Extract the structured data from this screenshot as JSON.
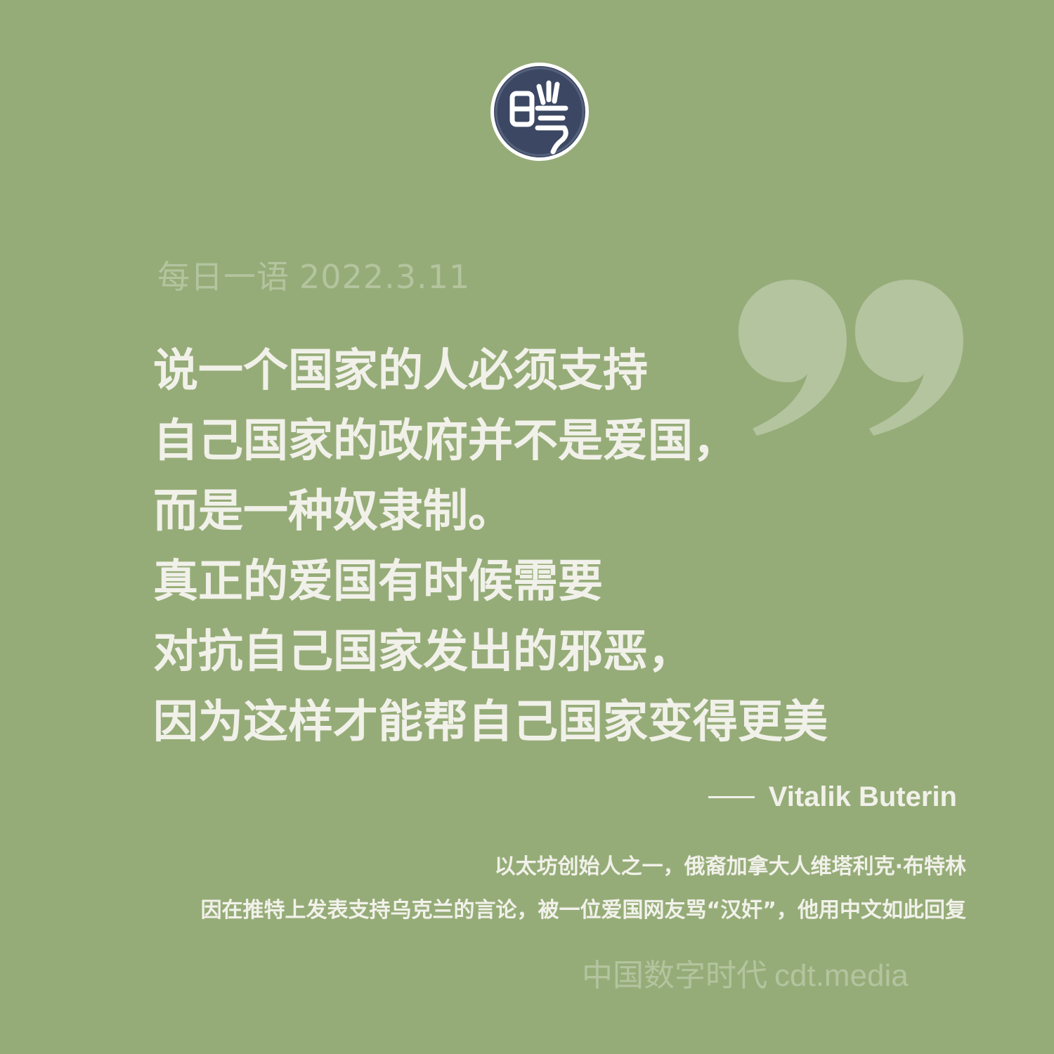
{
  "logo": {
    "char": "噤"
  },
  "header": {
    "label": "每日一语",
    "date": "2022.3.11"
  },
  "quote": {
    "lines": [
      "说一个国家的人必须支持",
      "自己国家的政府并不是爱国，",
      "而是一种奴隶制。",
      "真正的爱国有时候需要",
      "对抗自己国家发出的邪恶，",
      "因为这样才能帮自己国家变得更美"
    ]
  },
  "attribution": {
    "author": "Vitalik Buterin"
  },
  "caption": {
    "line1": "以太坊创始人之一，俄裔加拿大人维塔利克·布特林",
    "line2": "因在推特上发表支持乌克兰的言论，被一位爱国网友骂“汉奸”，他用中文如此回复"
  },
  "footer": {
    "brand": "中国数字时代",
    "site": "cdt.media"
  },
  "colors": {
    "background": "#96ac78",
    "text": "#f1f1ea",
    "muted": "#b3c49f",
    "logo_bg": "#3c4763"
  }
}
